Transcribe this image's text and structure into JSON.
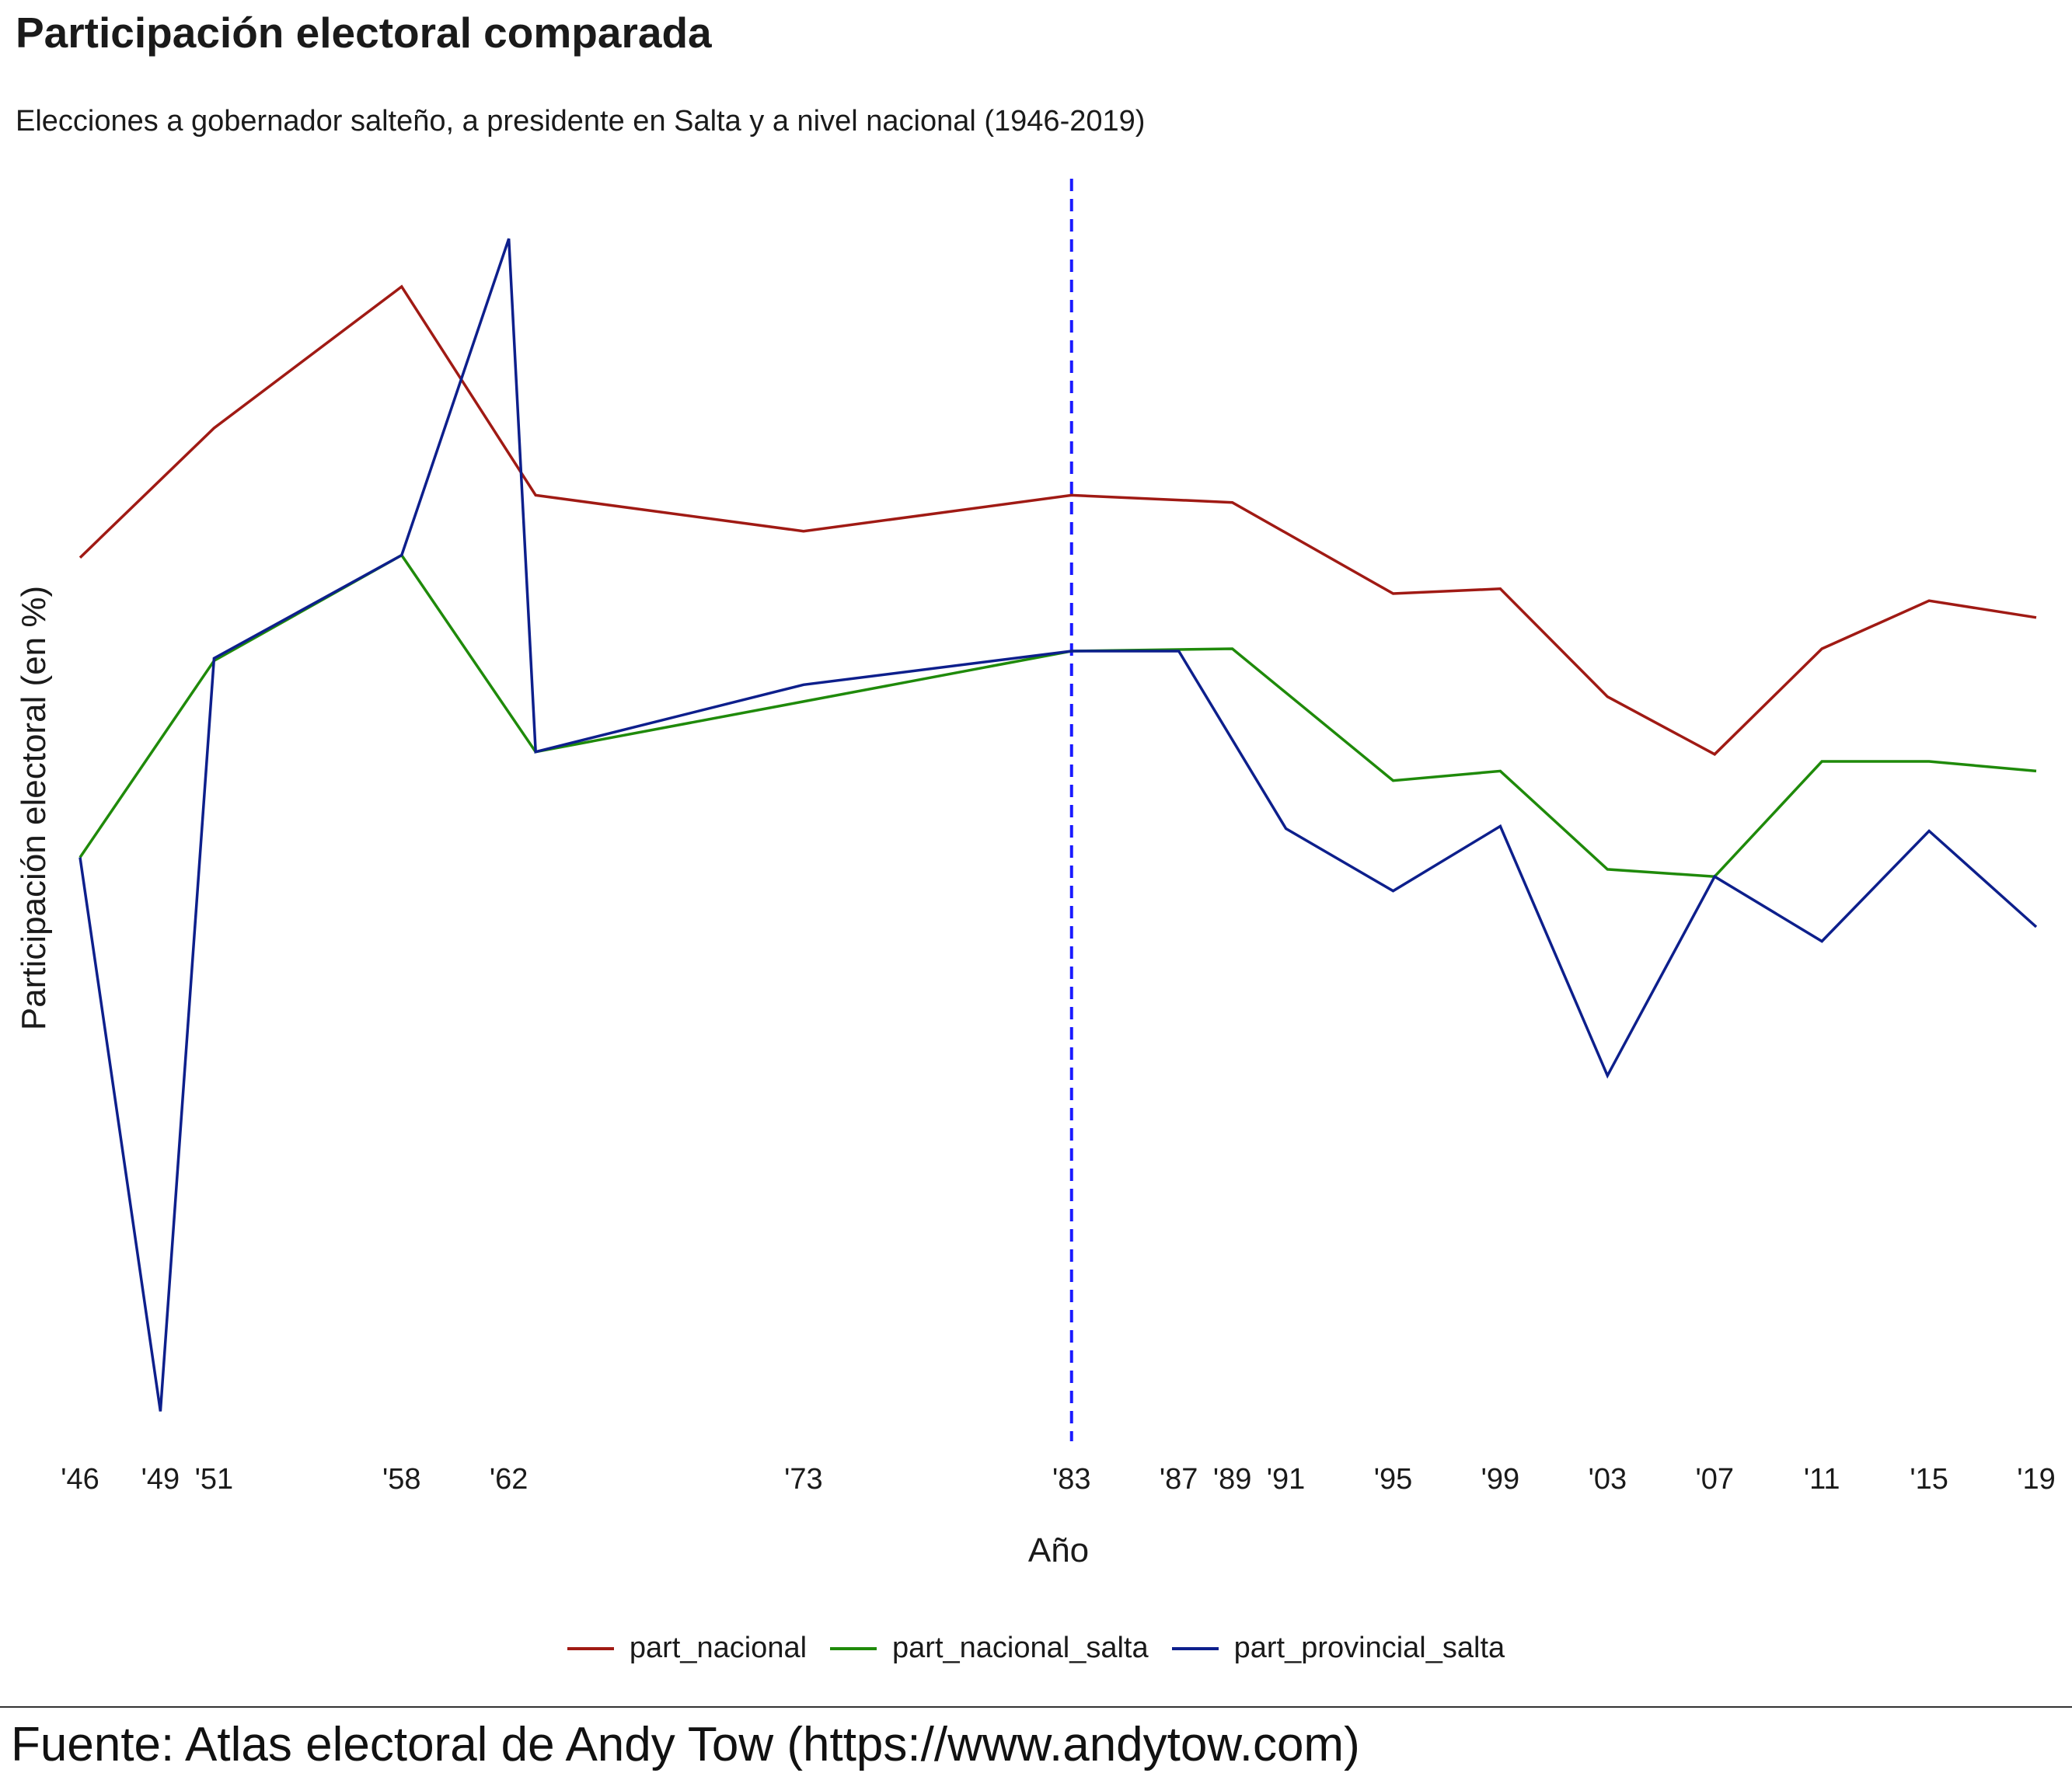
{
  "chart_data": {
    "type": "line",
    "title": "Participación electoral comparada",
    "subtitle": "Elecciones a gobernador salteño, a presidente en Salta y a nivel nacional (1946-2019)",
    "xlabel": "Año",
    "ylabel": "Participación electoral (en %)",
    "x_ticks": [
      {
        "year": 1946,
        "label": "'46"
      },
      {
        "year": 1949,
        "label": "'49"
      },
      {
        "year": 1951,
        "label": "'51"
      },
      {
        "year": 1958,
        "label": "'58"
      },
      {
        "year": 1962,
        "label": "'62"
      },
      {
        "year": 1973,
        "label": "'73"
      },
      {
        "year": 1983,
        "label": "'83"
      },
      {
        "year": 1987,
        "label": "'87"
      },
      {
        "year": 1989,
        "label": "'89"
      },
      {
        "year": 1991,
        "label": "'91"
      },
      {
        "year": 1995,
        "label": "'95"
      },
      {
        "year": 1999,
        "label": "'99"
      },
      {
        "year": 2003,
        "label": "'03"
      },
      {
        "year": 2007,
        "label": "'07"
      },
      {
        "year": 2011,
        "label": "'11"
      },
      {
        "year": 2015,
        "label": "'15"
      },
      {
        "year": 2019,
        "label": "'19"
      }
    ],
    "xlim": [
      1946,
      2019
    ],
    "ylim": [
      40,
      92
    ],
    "y_axis_labels_shown": false,
    "grid": false,
    "legend_position": "bottom",
    "reference_line": {
      "x": 1983,
      "style": "dashed",
      "color": "#1a1aff"
    },
    "series": [
      {
        "name": "part_nacional",
        "color": "#a01a14",
        "points": [
          [
            1946,
            76.2
          ],
          [
            1951,
            81.6
          ],
          [
            1958,
            87.5
          ],
          [
            1963,
            78.8
          ],
          [
            1973,
            77.3
          ],
          [
            1983,
            78.8
          ],
          [
            1989,
            78.5
          ],
          [
            1995,
            74.7
          ],
          [
            1999,
            74.9
          ],
          [
            2003,
            70.4
          ],
          [
            2007,
            68.0
          ],
          [
            2011,
            72.4
          ],
          [
            2015,
            74.4
          ],
          [
            2019,
            73.7
          ]
        ]
      },
      {
        "name": "part_nacional_salta",
        "color": "#1f8a0a",
        "points": [
          [
            1946,
            63.7
          ],
          [
            1951,
            71.9
          ],
          [
            1958,
            76.3
          ],
          [
            1963,
            68.1
          ],
          [
            1973,
            70.2
          ],
          [
            1983,
            72.3
          ],
          [
            1989,
            72.4
          ],
          [
            1995,
            66.9
          ],
          [
            1999,
            67.3
          ],
          [
            2003,
            63.2
          ],
          [
            2007,
            62.9
          ],
          [
            2011,
            67.7
          ],
          [
            2015,
            67.7
          ],
          [
            2019,
            67.3
          ]
        ]
      },
      {
        "name": "part_provincial_salta",
        "color": "#0d1f8c",
        "points": [
          [
            1946,
            63.7
          ],
          [
            1949,
            40.6
          ],
          [
            1951,
            72.0
          ],
          [
            1958,
            76.3
          ],
          [
            1962,
            89.5
          ],
          [
            1963,
            68.1
          ],
          [
            1973,
            70.9
          ],
          [
            1983,
            72.3
          ],
          [
            1987,
            72.3
          ],
          [
            1991,
            64.9
          ],
          [
            1995,
            62.3
          ],
          [
            1999,
            65.0
          ],
          [
            2003,
            54.6
          ],
          [
            2007,
            62.9
          ],
          [
            2011,
            60.2
          ],
          [
            2015,
            64.8
          ],
          [
            2019,
            60.8
          ]
        ]
      }
    ]
  },
  "source_note": "Fuente: Atlas electoral de Andy Tow (https://www.andytow.com)"
}
